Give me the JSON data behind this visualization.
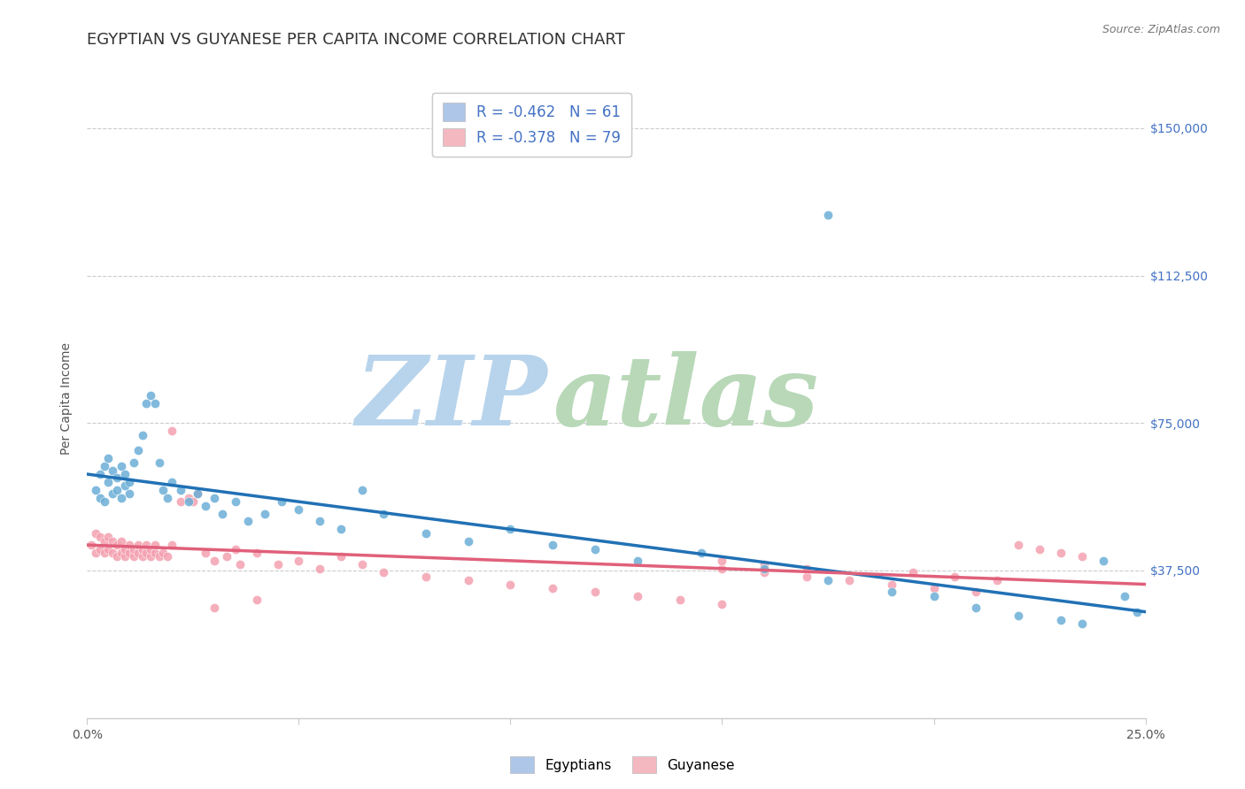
{
  "title": "EGYPTIAN VS GUYANESE PER CAPITA INCOME CORRELATION CHART",
  "source": "Source: ZipAtlas.com",
  "ylabel": "Per Capita Income",
  "ytick_labels": [
    "$37,500",
    "$75,000",
    "$112,500",
    "$150,000"
  ],
  "ytick_values": [
    37500,
    75000,
    112500,
    150000
  ],
  "ymin": 0,
  "ymax": 162500,
  "xmin": 0.0,
  "xmax": 0.25,
  "legend_entries": [
    {
      "label": "R = -0.462   N = 61",
      "color": "#aec6e8"
    },
    {
      "label": "R = -0.378   N = 79",
      "color": "#f4b8c1"
    }
  ],
  "legend_bottom": [
    "Egyptians",
    "Guyanese"
  ],
  "blue_scatter_color": "#6baed6",
  "pink_scatter_color": "#f4a0b0",
  "blue_line_color": "#2171b5",
  "pink_line_color": "#e0607a",
  "watermark_zip": "ZIP",
  "watermark_atlas": "atlas",
  "watermark_color_zip": "#c8dff0",
  "watermark_color_atlas": "#c8e8c8",
  "title_fontsize": 13,
  "axis_label_fontsize": 10,
  "tick_label_fontsize": 10,
  "background_color": "#ffffff",
  "egyptians_x": [
    0.002,
    0.003,
    0.003,
    0.004,
    0.004,
    0.005,
    0.005,
    0.006,
    0.006,
    0.007,
    0.007,
    0.008,
    0.008,
    0.009,
    0.009,
    0.01,
    0.01,
    0.011,
    0.012,
    0.013,
    0.014,
    0.015,
    0.016,
    0.017,
    0.018,
    0.019,
    0.02,
    0.022,
    0.024,
    0.026,
    0.028,
    0.03,
    0.032,
    0.035,
    0.038,
    0.042,
    0.046,
    0.05,
    0.055,
    0.06,
    0.065,
    0.07,
    0.08,
    0.09,
    0.1,
    0.11,
    0.12,
    0.13,
    0.145,
    0.16,
    0.175,
    0.175,
    0.19,
    0.2,
    0.21,
    0.22,
    0.23,
    0.235,
    0.24,
    0.245,
    0.248
  ],
  "egyptians_y": [
    58000,
    56000,
    62000,
    55000,
    64000,
    60000,
    66000,
    57000,
    63000,
    58000,
    61000,
    56000,
    64000,
    59000,
    62000,
    57000,
    60000,
    65000,
    68000,
    72000,
    80000,
    82000,
    80000,
    65000,
    58000,
    56000,
    60000,
    58000,
    55000,
    57000,
    54000,
    56000,
    52000,
    55000,
    50000,
    52000,
    55000,
    53000,
    50000,
    48000,
    58000,
    52000,
    47000,
    45000,
    48000,
    44000,
    43000,
    40000,
    42000,
    38000,
    128000,
    35000,
    32000,
    31000,
    28000,
    26000,
    25000,
    24000,
    40000,
    31000,
    27000
  ],
  "guyanese_x": [
    0.001,
    0.002,
    0.002,
    0.003,
    0.003,
    0.004,
    0.004,
    0.005,
    0.005,
    0.006,
    0.006,
    0.007,
    0.007,
    0.008,
    0.008,
    0.009,
    0.009,
    0.01,
    0.01,
    0.011,
    0.011,
    0.012,
    0.012,
    0.013,
    0.013,
    0.014,
    0.014,
    0.015,
    0.015,
    0.016,
    0.016,
    0.017,
    0.018,
    0.019,
    0.02,
    0.022,
    0.024,
    0.026,
    0.028,
    0.03,
    0.033,
    0.036,
    0.04,
    0.045,
    0.05,
    0.055,
    0.06,
    0.065,
    0.07,
    0.08,
    0.09,
    0.1,
    0.11,
    0.12,
    0.13,
    0.14,
    0.02,
    0.025,
    0.035,
    0.15,
    0.16,
    0.17,
    0.18,
    0.19,
    0.2,
    0.21,
    0.22,
    0.225,
    0.23,
    0.235,
    0.15,
    0.16,
    0.17,
    0.195,
    0.205,
    0.215,
    0.03,
    0.04,
    0.15
  ],
  "guyanese_y": [
    44000,
    42000,
    47000,
    43000,
    46000,
    42000,
    45000,
    43000,
    46000,
    42000,
    45000,
    41000,
    44000,
    42000,
    45000,
    41000,
    43000,
    42000,
    44000,
    41000,
    43000,
    42000,
    44000,
    41000,
    43000,
    42000,
    44000,
    41000,
    43000,
    42000,
    44000,
    41000,
    42000,
    41000,
    73000,
    55000,
    56000,
    57000,
    42000,
    40000,
    41000,
    39000,
    42000,
    39000,
    40000,
    38000,
    41000,
    39000,
    37000,
    36000,
    35000,
    34000,
    33000,
    32000,
    31000,
    30000,
    44000,
    55000,
    43000,
    38000,
    37000,
    36000,
    35000,
    34000,
    33000,
    32000,
    44000,
    43000,
    42000,
    41000,
    40000,
    39000,
    38000,
    37000,
    36000,
    35000,
    28000,
    30000,
    29000
  ]
}
